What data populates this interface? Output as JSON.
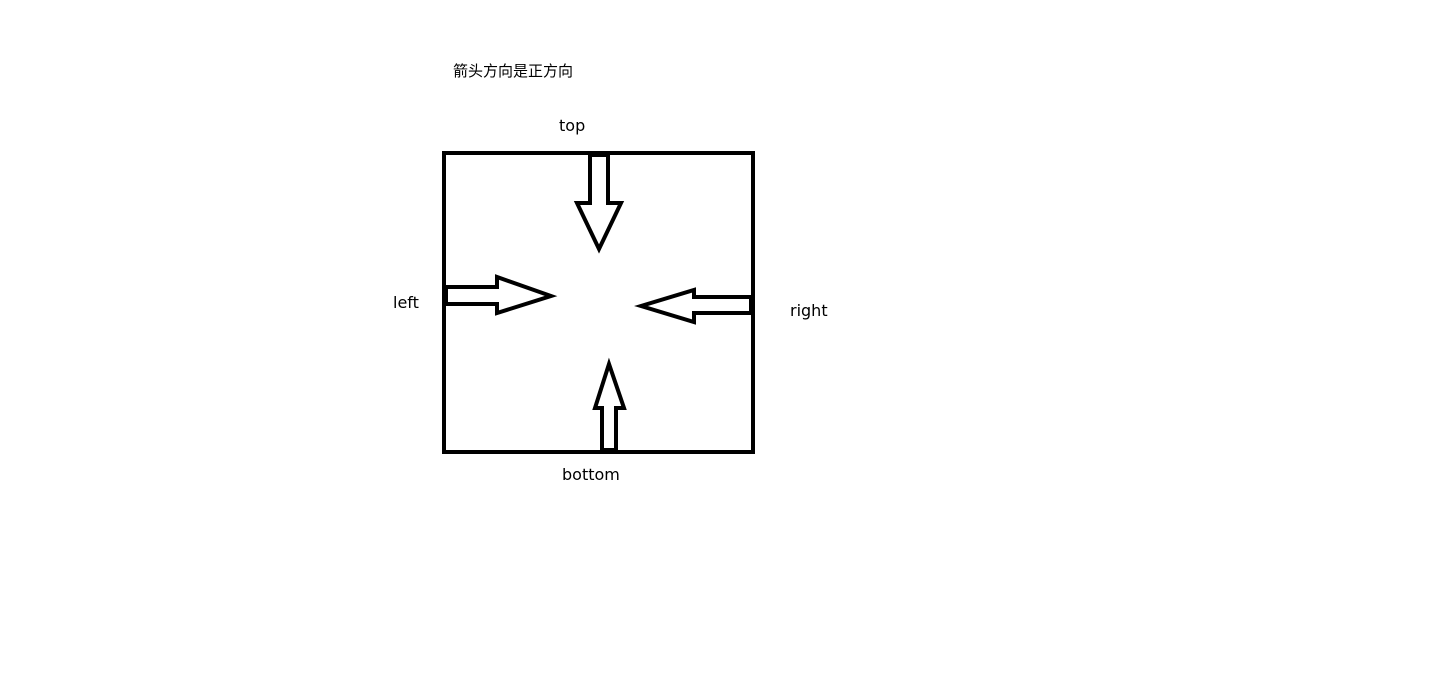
{
  "title": "箭头方向是正方向",
  "labels": {
    "top": "top",
    "left": "left",
    "right": "right",
    "bottom": "bottom"
  },
  "colors": {
    "stroke": "#000000",
    "background": "#ffffff"
  }
}
